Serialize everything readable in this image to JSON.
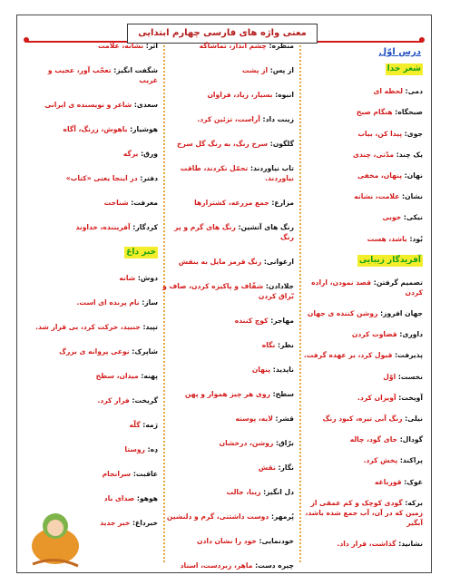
{
  "header": {
    "title": "معنی واژه های فارسی چهارم ابتدایی",
    "lesson": "درس اوّل"
  },
  "columns": [
    {
      "items": [
        {
          "heading": "شعر خدا"
        },
        {
          "term": "دمی:",
          "meaning": "لحظه ای"
        },
        {
          "term": "صبحگاه:",
          "meaning": "هنگام صبح"
        },
        {
          "term": "جوی:",
          "meaning": "پیدا کن، بیاب"
        },
        {
          "term": "یک چند:",
          "meaning": "مدّتی، چندی"
        },
        {
          "term": "نهان:",
          "meaning": "پنهان، مخفی"
        },
        {
          "term": "نشان:",
          "meaning": "علامت، نشانه"
        },
        {
          "term": "نیکی:",
          "meaning": "خوبی"
        },
        {
          "term": "بُود:",
          "meaning": "باشد، هست"
        },
        {
          "heading": "آفریدگار زیبایی"
        },
        {
          "term": "تصمیم گرفتن:",
          "meaning": "قصد نمودن، اراده کردن"
        },
        {
          "term": "جهان افروز:",
          "meaning": "روشن کننده ی جهان"
        },
        {
          "term": "داوری:",
          "meaning": "قضاوت کردن"
        },
        {
          "term": "پذیرفت:",
          "meaning": "قبول کرد، بر عهده گرفت."
        },
        {
          "term": "نخست:",
          "meaning": "اوّل"
        },
        {
          "term": "آویخت:",
          "meaning": "آویزان کرد."
        },
        {
          "term": "نیلی:",
          "meaning": "رنگ آبی تیره، کبود رنگ"
        },
        {
          "term": "گودال:",
          "meaning": "جای گود، چاله"
        },
        {
          "term": "پراکند:",
          "meaning": "پخش کرد."
        },
        {
          "term": "غوک:",
          "meaning": "قورباغه"
        },
        {
          "term": "برکه:",
          "meaning": "گودی کوچک و کم عمقی از زمین که در آن، آب جمع شده باشد، آبگیر"
        },
        {
          "term": "نشانید:",
          "meaning": "گذاشت، قرار داد."
        }
      ]
    },
    {
      "items": [
        {
          "term": "منظره:",
          "meaning": "چشم انداز، تماشاگه"
        },
        {
          "term": "از پس:",
          "meaning": "از پشت"
        },
        {
          "term": "انبوه:",
          "meaning": "بسیار، زیاد، فراوان"
        },
        {
          "term": "زینت داد:",
          "meaning": "آراست، تزئین کرد."
        },
        {
          "term": "گلگون:",
          "meaning": "سرخ رنگ، به رنگ گل سرخ"
        },
        {
          "term": "تاب نیاوردند:",
          "meaning": "تحمّل نکردند، طاقت نیاوردند."
        },
        {
          "term": "مزارع:",
          "meaning": "جمع مزرعه، کشتزارها"
        },
        {
          "term": "رنگ های آتشین:",
          "meaning": "رنگ های گرم و پر رنگ"
        },
        {
          "term": "ارغوانی:",
          "meaning": "رنگ قرمز مایل به بنفش"
        },
        {
          "term": "جلادادن:",
          "meaning": "شفّاف و پاکیزه کردن، صاف و بّراق کردن"
        },
        {
          "term": "مهاجر:",
          "meaning": "کوچ کننده"
        },
        {
          "term": "نظر:",
          "meaning": "نگاه"
        },
        {
          "term": "ناپدید:",
          "meaning": "پنهان"
        },
        {
          "term": "سطح:",
          "meaning": "روی هر چیز هموار و پهن"
        },
        {
          "term": "قشر:",
          "meaning": "لایه، پوسته"
        },
        {
          "term": "برّاق:",
          "meaning": "روشن، درخشان"
        },
        {
          "term": "نگار:",
          "meaning": "نقش"
        },
        {
          "term": "دل انگیز:",
          "meaning": "زیبا، جالب"
        },
        {
          "term": "پُرمهر:",
          "meaning": "دوست داشتنی، گرم و دلنشین"
        },
        {
          "term": "خودنمایی:",
          "meaning": "خود را نشان دادن"
        },
        {
          "term": "چیره دست:",
          "meaning": "ماهر، زبردست، استاد"
        }
      ]
    },
    {
      "items": [
        {
          "term": "اثر:",
          "meaning": "نشانه، علامت"
        },
        {
          "term": "شگفت انگیز:",
          "meaning": "تعجّب آور، عجیب و غریب"
        },
        {
          "term": "سعدی:",
          "meaning": "شاعر و نویسنده ی ایرانی"
        },
        {
          "term": "هوشیار:",
          "meaning": "باهوش، زرنگ، آگاه"
        },
        {
          "term": "ورق:",
          "meaning": "برگه"
        },
        {
          "term": "دفتر:",
          "meaning": "در اینجا یعنی «کتاب»"
        },
        {
          "term": "معرفت:",
          "meaning": "شناخت"
        },
        {
          "term": "کردگار:",
          "meaning": "آفریننده، خداوند"
        },
        {
          "heading": "خبر داغ"
        },
        {
          "term": "دوش:",
          "meaning": "شانه"
        },
        {
          "term": "ساز:",
          "meaning": "نام پرنده ای است."
        },
        {
          "term": "تپید:",
          "meaning": "جنبید، حرکت کرد، بی قرار شد."
        },
        {
          "term": "شاپرک:",
          "meaning": "نوعی پروانه ی بزرگ"
        },
        {
          "term": "پهنه:",
          "meaning": "میدان، سطح"
        },
        {
          "term": "گریخت:",
          "meaning": "فرار کرد."
        },
        {
          "term": "رَمه:",
          "meaning": "گلّه"
        },
        {
          "term": "دِه:",
          "meaning": "روستا"
        },
        {
          "term": "عاقبت:",
          "meaning": "سرانجام"
        },
        {
          "term": "هوهو:",
          "meaning": "صدای باد"
        },
        {
          "term": "خبرداغ:",
          "meaning": "خبر جدید"
        }
      ]
    }
  ]
}
